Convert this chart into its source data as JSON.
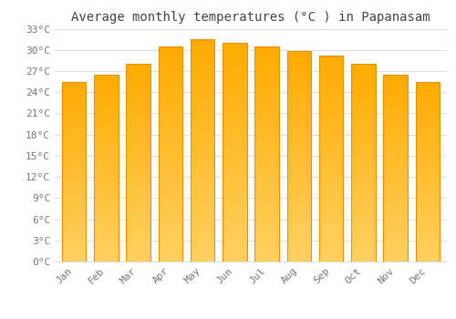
{
  "title": "Average monthly temperatures (°C ) in Papanasam",
  "months": [
    "Jan",
    "Feb",
    "Mar",
    "Apr",
    "May",
    "Jun",
    "Jul",
    "Aug",
    "Sep",
    "Oct",
    "Nov",
    "Dec"
  ],
  "values": [
    25.5,
    26.5,
    28.0,
    30.5,
    31.5,
    31.0,
    30.5,
    29.8,
    29.2,
    28.0,
    26.5,
    25.5
  ],
  "bar_color_face": "#FFAA00",
  "bar_color_light": "#FFD060",
  "bar_color_edge": "#E89000",
  "background_color": "#ffffff",
  "grid_color": "#dddddd",
  "ytick_step": 3,
  "ymin": 0,
  "ymax": 33,
  "title_fontsize": 10,
  "tick_fontsize": 8,
  "font_family": "monospace"
}
